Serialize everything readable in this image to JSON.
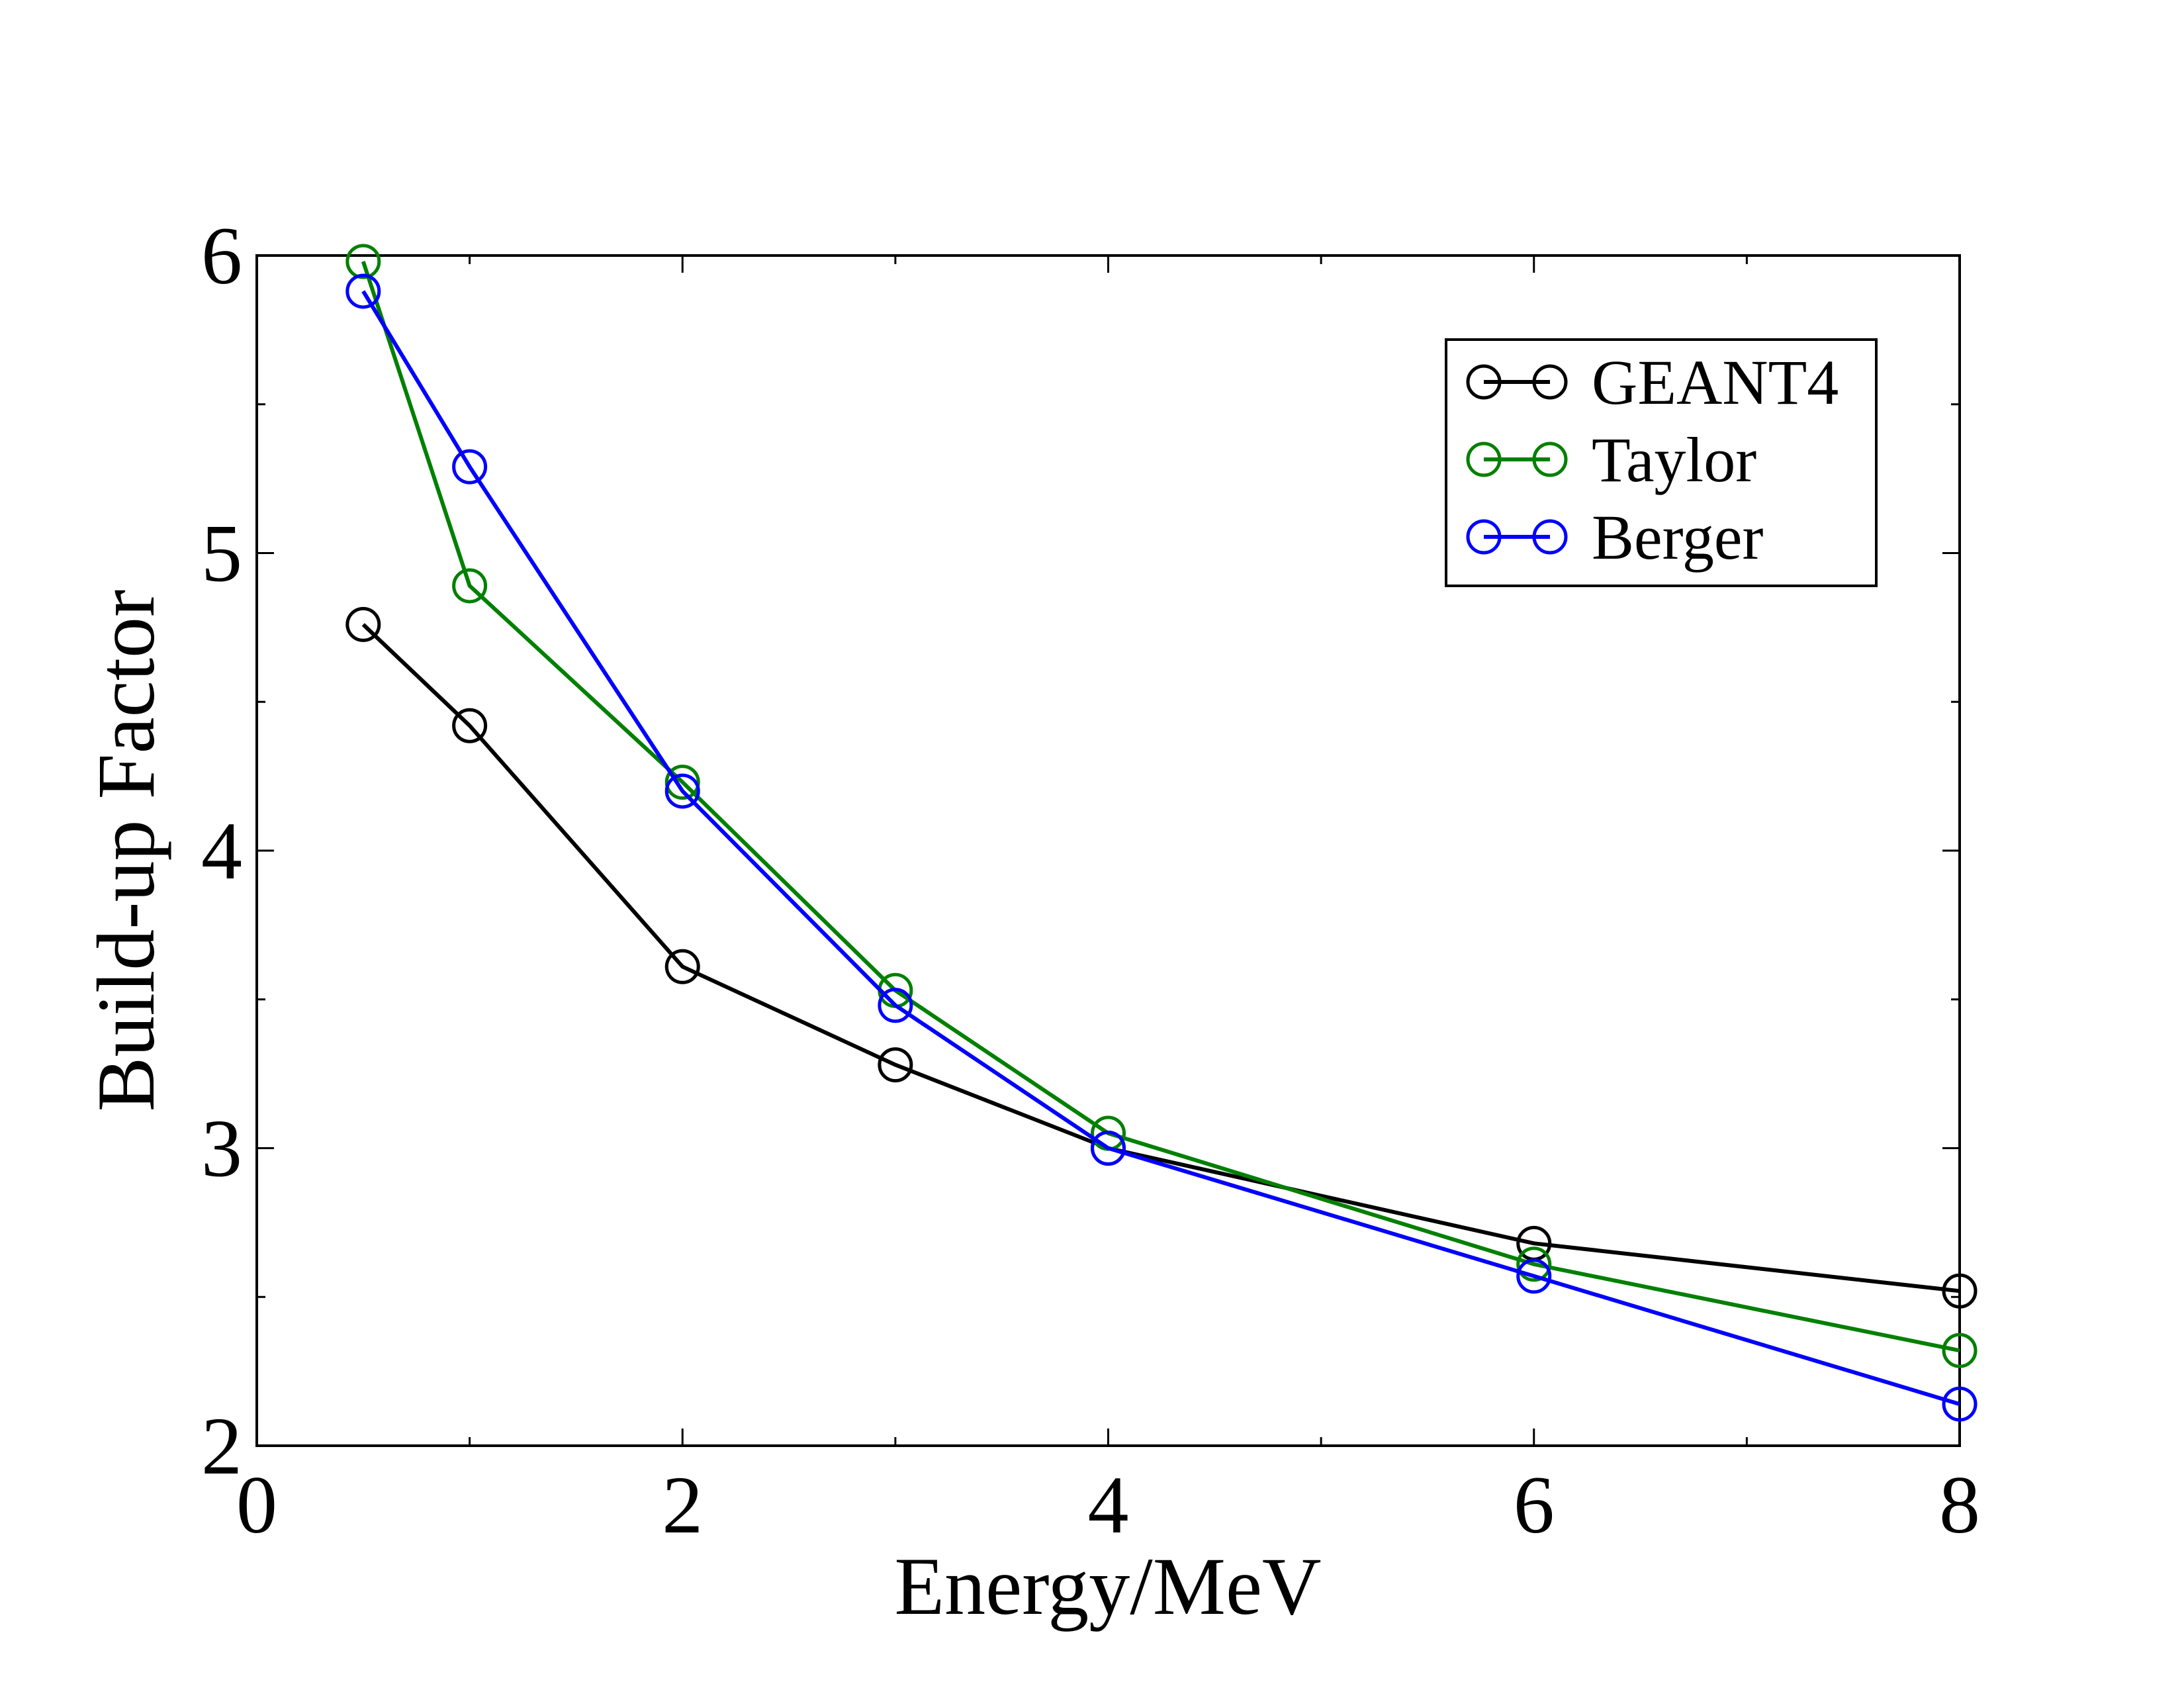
{
  "chart_data": {
    "type": "line",
    "title": "",
    "xlabel": "Energy/MeV",
    "ylabel": "Build-up Factor",
    "xlim": [
      0,
      8
    ],
    "ylim": [
      2,
      6
    ],
    "x_ticks": [
      0,
      2,
      4,
      6,
      8
    ],
    "x_tick_labels": [
      "0",
      "2",
      "4",
      "6",
      "8"
    ],
    "x_minor_ticks": [
      1,
      3,
      5,
      7
    ],
    "y_ticks": [
      2,
      3,
      4,
      5,
      6
    ],
    "y_tick_labels": [
      "2",
      "3",
      "4",
      "5",
      "6"
    ],
    "y_minor_ticks": [
      2.5,
      3.5,
      4.5,
      5.5
    ],
    "grid": false,
    "legend_position": "top-right",
    "marker": "open-circle",
    "series": [
      {
        "name": "GEANT4",
        "color": "#000000",
        "x": [
          0.5,
          1,
          2,
          3,
          4,
          6,
          8
        ],
        "y": [
          4.76,
          4.42,
          3.61,
          3.28,
          3.0,
          2.68,
          2.52
        ]
      },
      {
        "name": "Taylor",
        "color": "#008000",
        "x": [
          0.5,
          1,
          2,
          3,
          4,
          6,
          8
        ],
        "y": [
          5.98,
          4.89,
          4.23,
          3.53,
          3.05,
          2.61,
          2.32
        ]
      },
      {
        "name": "Berger",
        "color": "#0000ff",
        "x": [
          0.5,
          1,
          2,
          3,
          4,
          6,
          8
        ],
        "y": [
          5.88,
          5.29,
          4.2,
          3.48,
          3.0,
          2.57,
          2.14
        ]
      }
    ]
  }
}
